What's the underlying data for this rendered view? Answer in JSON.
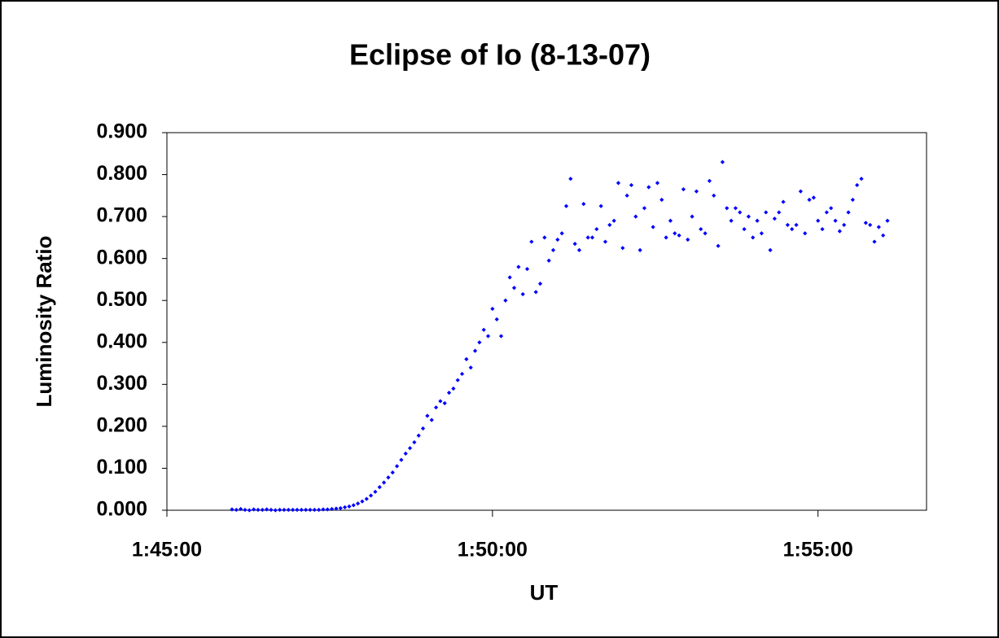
{
  "chart_data": {
    "type": "scatter",
    "title": "Eclipse of Io (8-13-07)",
    "x_label": "UT",
    "y_label": "Luminosity Ratio",
    "xlim": [
      6300,
      7000
    ],
    "xticks": [
      {
        "value": 6300,
        "label": "1:45:00"
      },
      {
        "value": 6600,
        "label": "1:50:00"
      },
      {
        "value": 6900,
        "label": "1:55:00"
      }
    ],
    "ylim": [
      0,
      0.9
    ],
    "yticks": [
      {
        "value": 0,
        "label": "0.000"
      },
      {
        "value": 0.1,
        "label": "0.100"
      },
      {
        "value": 0.2,
        "label": "0.200"
      },
      {
        "value": 0.3,
        "label": "0.300"
      },
      {
        "value": 0.4,
        "label": "0.400"
      },
      {
        "value": 0.5,
        "label": "0.500"
      },
      {
        "value": 0.6,
        "label": "0.600"
      },
      {
        "value": 0.7,
        "label": "0.700"
      },
      {
        "value": 0.8,
        "label": "0.800"
      },
      {
        "value": 0.9,
        "label": "0.900"
      }
    ],
    "color": "#0000ff",
    "x": [
      6360,
      6364,
      6368,
      6372,
      6376,
      6380,
      6384,
      6388,
      6392,
      6396,
      6400,
      6404,
      6408,
      6412,
      6416,
      6420,
      6424,
      6428,
      6432,
      6436,
      6440,
      6444,
      6448,
      6452,
      6456,
      6460,
      6464,
      6468,
      6472,
      6476,
      6480,
      6484,
      6488,
      6492,
      6496,
      6500,
      6504,
      6508,
      6512,
      6516,
      6520,
      6524,
      6528,
      6532,
      6536,
      6540,
      6544,
      6548,
      6552,
      6556,
      6560,
      6564,
      6568,
      6572,
      6576,
      6580,
      6584,
      6588,
      6592,
      6596,
      6600,
      6604,
      6608,
      6612,
      6616,
      6620,
      6624,
      6628,
      6632,
      6636,
      6640,
      6644,
      6648,
      6652,
      6656,
      6660,
      6664,
      6668,
      6672,
      6676,
      6680,
      6684,
      6688,
      6692,
      6696,
      6700,
      6704,
      6708,
      6712,
      6716,
      6720,
      6724,
      6728,
      6732,
      6736,
      6740,
      6744,
      6748,
      6752,
      6756,
      6760,
      6764,
      6768,
      6772,
      6776,
      6780,
      6784,
      6788,
      6792,
      6796,
      6800,
      6804,
      6808,
      6812,
      6816,
      6820,
      6824,
      6828,
      6832,
      6836,
      6840,
      6844,
      6848,
      6852,
      6856,
      6860,
      6864,
      6868,
      6872,
      6876,
      6880,
      6884,
      6888,
      6892,
      6896,
      6900,
      6904,
      6908,
      6912,
      6916,
      6920,
      6924,
      6928,
      6932,
      6936,
      6940,
      6944,
      6948,
      6952,
      6956,
      6960,
      6964
    ],
    "values": [
      0.002,
      0.001,
      0.003,
      0.001,
      0,
      0.002,
      0.001,
      0.001,
      0.002,
      0.001,
      0,
      0.001,
      0.001,
      0.001,
      0.001,
      0.001,
      0.001,
      0.001,
      0.001,
      0.001,
      0.001,
      0.002,
      0.002,
      0.003,
      0.004,
      0.005,
      0.007,
      0.009,
      0.012,
      0.016,
      0.021,
      0.027,
      0.035,
      0.044,
      0.055,
      0.066,
      0.078,
      0.09,
      0.105,
      0.12,
      0.135,
      0.148,
      0.162,
      0.178,
      0.195,
      0.225,
      0.215,
      0.245,
      0.26,
      0.255,
      0.28,
      0.29,
      0.31,
      0.325,
      0.36,
      0.34,
      0.38,
      0.4,
      0.43,
      0.415,
      0.48,
      0.455,
      0.415,
      0.5,
      0.555,
      0.53,
      0.58,
      0.515,
      0.575,
      0.64,
      0.52,
      0.54,
      0.65,
      0.595,
      0.62,
      0.645,
      0.66,
      0.725,
      0.79,
      0.635,
      0.62,
      0.73,
      0.65,
      0.65,
      0.67,
      0.725,
      0.64,
      0.68,
      0.69,
      0.78,
      0.625,
      0.75,
      0.775,
      0.7,
      0.62,
      0.72,
      0.77,
      0.675,
      0.78,
      0.74,
      0.65,
      0.69,
      0.66,
      0.655,
      0.765,
      0.645,
      0.7,
      0.76,
      0.67,
      0.66,
      0.785,
      0.75,
      0.63,
      0.83,
      0.72,
      0.69,
      0.72,
      0.71,
      0.67,
      0.7,
      0.65,
      0.69,
      0.66,
      0.71,
      0.62,
      0.695,
      0.71,
      0.735,
      0.68,
      0.67,
      0.68,
      0.76,
      0.66,
      0.74,
      0.745,
      0.69,
      0.67,
      0.71,
      0.72,
      0.69,
      0.665,
      0.68,
      0.71,
      0.74,
      0.775,
      0.79,
      0.685,
      0.68,
      0.64,
      0.675,
      0.655,
      0.69
    ]
  }
}
